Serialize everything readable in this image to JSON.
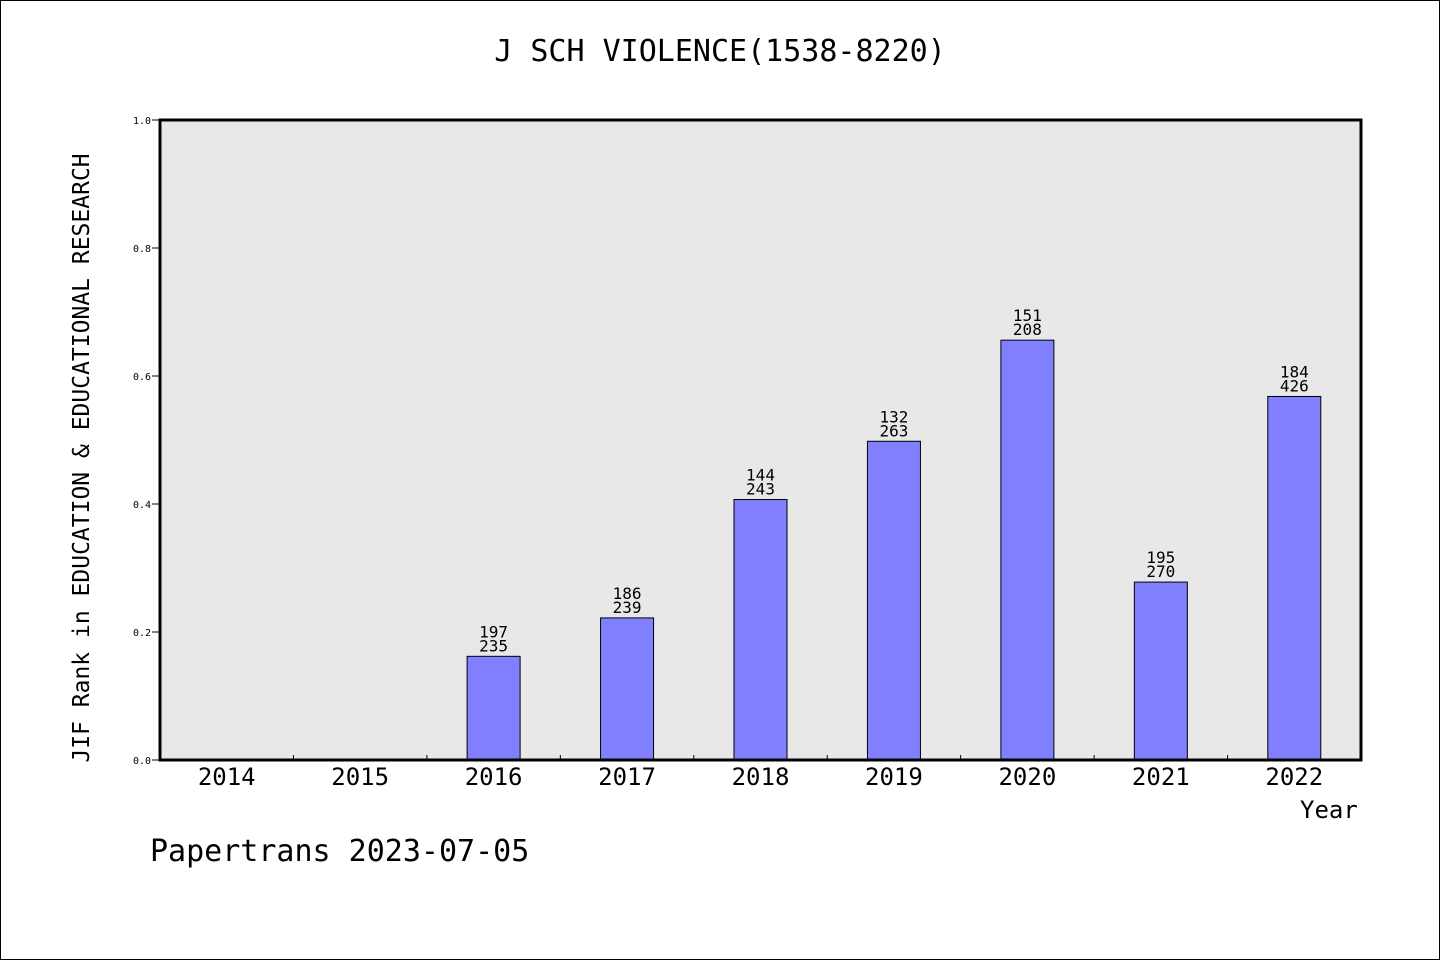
{
  "chart_data": {
    "type": "bar",
    "title": "J SCH VIOLENCE(1538-8220)",
    "xlabel": "Year",
    "ylabel": "JIF Rank in EDUCATION & EDUCATIONAL RESEARCH",
    "ylim": [
      0.0,
      1.0
    ],
    "yticks": [
      "0.0",
      "0.2",
      "0.4",
      "0.6",
      "0.8",
      "1.0"
    ],
    "categories": [
      "2014",
      "2015",
      "2016",
      "2017",
      "2018",
      "2019",
      "2020",
      "2021",
      "2022"
    ],
    "values": [
      null,
      null,
      0.162,
      0.222,
      0.407,
      0.498,
      0.656,
      0.278,
      0.568
    ],
    "rank_labels": [
      null,
      null,
      [
        "197",
        "235"
      ],
      [
        "186",
        "239"
      ],
      [
        "144",
        "243"
      ],
      [
        "132",
        "263"
      ],
      [
        "151",
        "208"
      ],
      [
        "195",
        "270"
      ],
      [
        "184",
        "426"
      ]
    ],
    "grid": false,
    "colors": {
      "bar": "#8080ff",
      "plot_background": "#e8e8e8",
      "axis": "#000000"
    }
  },
  "footer": "Papertrans 2023-07-05"
}
